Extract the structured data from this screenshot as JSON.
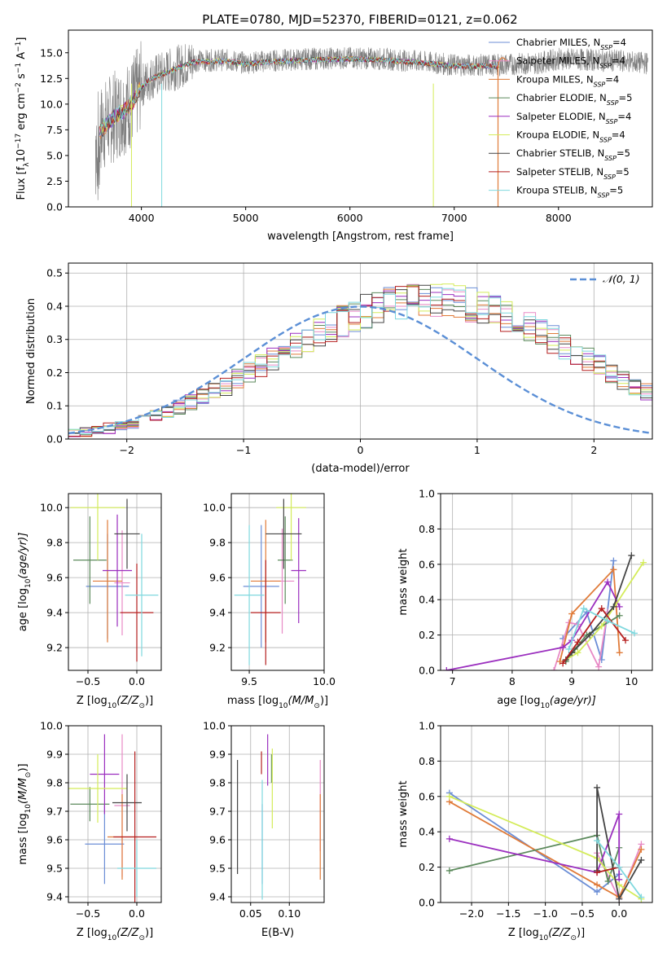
{
  "figure_title": "PLATE=0780, MJD=52370, FIBERID=0121, z=0.062",
  "colors": {
    "chabrier_miles": "#6b8ed6",
    "salpeter_miles": "#e88ac6",
    "kroupa_miles": "#e07b39",
    "chabrier_elodie": "#5c8a5c",
    "salpeter_elodie": "#9b2fbf",
    "kroupa_elodie": "#d4ec5a",
    "chabrier_stelib": "#444444",
    "salpeter_stelib": "#b51f1f",
    "kroupa_stelib": "#7fd8de",
    "data": "#7f7f7f",
    "normal_curve": "#5b8fd6",
    "grid": "#b0b0b0"
  },
  "legend": {
    "models": [
      {
        "label": "Chabrier MILES, N",
        "sub": "SSP",
        "tail": "=4",
        "key": "chabrier_miles"
      },
      {
        "label": "Salpeter MILES, N",
        "sub": "SSP",
        "tail": "=4",
        "key": "salpeter_miles"
      },
      {
        "label": "Kroupa MILES, N",
        "sub": "SSP",
        "tail": "=4",
        "key": "kroupa_miles"
      },
      {
        "label": "Chabrier ELODIE, N",
        "sub": "SSP",
        "tail": "=5",
        "key": "chabrier_elodie"
      },
      {
        "label": "Salpeter ELODIE, N",
        "sub": "SSP",
        "tail": "=4",
        "key": "salpeter_elodie"
      },
      {
        "label": "Kroupa ELODIE, N",
        "sub": "SSP",
        "tail": "=4",
        "key": "kroupa_elodie"
      },
      {
        "label": "Chabrier STELIB, N",
        "sub": "SSP",
        "tail": "=5",
        "key": "chabrier_stelib"
      },
      {
        "label": "Salpeter STELIB, N",
        "sub": "SSP",
        "tail": "=5",
        "key": "salpeter_stelib"
      },
      {
        "label": "Kroupa STELIB, N",
        "sub": "SSP",
        "tail": "=5",
        "key": "kroupa_stelib"
      }
    ],
    "normal": "𝒩(0, 1)"
  },
  "chart_data": [
    {
      "id": "spectrum",
      "type": "line",
      "xlabel": "wavelength [Angstrom, rest frame]",
      "ylabel": "Flux [f",
      "ylabel_parts": [
        "Flux [f",
        "λ",
        "10",
        "−17",
        " erg cm",
        "−2",
        " s",
        "−1",
        " A",
        "−1",
        "]"
      ],
      "xlim": [
        3300,
        8900
      ],
      "ylim": [
        0,
        17.2
      ],
      "xticks": [
        4000,
        5000,
        6000,
        7000,
        8000
      ],
      "xtick_labels": [
        "4000",
        "5000",
        "6000",
        "7000",
        "8000"
      ],
      "yticks": [
        0,
        2.5,
        5,
        7.5,
        10,
        12.5,
        15
      ],
      "ytick_labels": [
        "0.0",
        "2.5",
        "5.0",
        "7.5",
        "10.0",
        "12.5",
        "15.0"
      ],
      "continuum": [
        [
          3560,
          7.0
        ],
        [
          3700,
          8.5
        ],
        [
          3900,
          10.0
        ],
        [
          4000,
          11.8
        ],
        [
          4100,
          12.6
        ],
        [
          4300,
          13.4
        ],
        [
          4500,
          14.2
        ],
        [
          4800,
          14.3
        ],
        [
          5000,
          14.0
        ],
        [
          5200,
          14.2
        ],
        [
          5600,
          14.4
        ],
        [
          6000,
          14.5
        ],
        [
          6300,
          14.4
        ],
        [
          6600,
          14.2
        ],
        [
          7000,
          13.8
        ],
        [
          7400,
          13.8
        ],
        [
          7800,
          14.0
        ],
        [
          8000,
          14.4
        ],
        [
          8300,
          14.3
        ],
        [
          8600,
          14.2
        ],
        [
          8800,
          14.0
        ]
      ],
      "model_end": 7430,
      "data_end": 8860
    },
    {
      "id": "residuals",
      "type": "bar",
      "xlabel": "(data-model)/error",
      "ylabel": "Normed distribution",
      "xlim": [
        -2.5,
        2.5
      ],
      "ylim": [
        0,
        0.53
      ],
      "xticks": [
        -2,
        -1,
        0,
        1,
        2
      ],
      "xtick_labels": [
        "−2",
        "−1",
        "0",
        "1",
        "2"
      ],
      "yticks": [
        0,
        0.1,
        0.2,
        0.3,
        0.4,
        0.5
      ],
      "ytick_labels": [
        "0.0",
        "0.1",
        "0.2",
        "0.3",
        "0.4",
        "0.5"
      ],
      "bin_width": 0.1,
      "bins_start": -2.5,
      "envelope": [
        0.018,
        0.022,
        0.026,
        0.032,
        0.04,
        0.05,
        0.06,
        0.07,
        0.082,
        0.095,
        0.11,
        0.125,
        0.142,
        0.16,
        0.18,
        0.2,
        0.22,
        0.24,
        0.26,
        0.28,
        0.3,
        0.32,
        0.34,
        0.355,
        0.37,
        0.385,
        0.395,
        0.405,
        0.41,
        0.415,
        0.42,
        0.42,
        0.415,
        0.41,
        0.405,
        0.395,
        0.385,
        0.37,
        0.355,
        0.34,
        0.32,
        0.3,
        0.28,
        0.26,
        0.24,
        0.22,
        0.2,
        0.18,
        0.16,
        0.142
      ],
      "normal_label": "𝒩(0, 1)"
    },
    {
      "id": "age_vs_Z",
      "type": "scatter",
      "xlabel": "Z [log",
      "xlabel_parts": [
        "Z [log",
        "10",
        "(Z/Z",
        "⊙",
        ")]"
      ],
      "ylabel_parts": [
        "age  [log",
        "10",
        "(age/yr)]"
      ],
      "xlim": [
        -0.7,
        0.25
      ],
      "ylim": [
        9.07,
        10.08
      ],
      "xticks": [
        -0.5,
        0.0
      ],
      "xtick_labels": [
        "−0.5",
        "0.0"
      ],
      "yticks": [
        9.2,
        9.4,
        9.6,
        9.8,
        10.0
      ],
      "ytick_labels": [
        "9.2",
        "9.4",
        "9.6",
        "9.8",
        "10.0"
      ],
      "points": [
        {
          "key": "chabrier_miles",
          "x": -0.3,
          "xerr": 0.22,
          "y": 9.55,
          "yerr": 0.3
        },
        {
          "key": "salpeter_miles",
          "x": -0.15,
          "xerr": 0.08,
          "y": 9.57,
          "yerr": 0.3
        },
        {
          "key": "kroupa_miles",
          "x": -0.3,
          "xerr": 0.15,
          "y": 9.58,
          "yerr": 0.35
        },
        {
          "key": "chabrier_elodie",
          "x": -0.48,
          "xerr": 0.17,
          "y": 9.7,
          "yerr": 0.25
        },
        {
          "key": "salpeter_elodie",
          "x": -0.2,
          "xerr": 0.15,
          "y": 9.64,
          "yerr": 0.32
        },
        {
          "key": "kroupa_elodie",
          "x": -0.4,
          "xerr": 0.28,
          "y": 10.0,
          "yerr": 0.3
        },
        {
          "key": "chabrier_stelib",
          "x": -0.1,
          "xerr": 0.13,
          "y": 9.85,
          "yerr": 0.2
        },
        {
          "key": "salpeter_stelib",
          "x": 0.0,
          "xerr": 0.17,
          "y": 9.4,
          "yerr": 0.28
        },
        {
          "key": "kroupa_stelib",
          "x": 0.05,
          "xerr": 0.17,
          "y": 9.5,
          "yerr": 0.35
        }
      ]
    },
    {
      "id": "age_vs_mass",
      "type": "scatter",
      "xlabel_parts": [
        "mass [log",
        "10",
        "(M/M",
        "⊙",
        ")]"
      ],
      "xlim": [
        9.38,
        10.0
      ],
      "ylim": [
        9.07,
        10.08
      ],
      "xticks": [
        9.5,
        10.0
      ],
      "xtick_labels": [
        "9.5",
        "10.0"
      ],
      "yticks": [
        9.2,
        9.4,
        9.6,
        9.8,
        10.0
      ],
      "ytick_labels": [
        "9.2",
        "9.4",
        "9.6",
        "9.8",
        "10.0"
      ],
      "points": [
        {
          "key": "chabrier_miles",
          "x": 9.58,
          "xerr": 0.12,
          "y": 9.55,
          "yerr": 0.35
        },
        {
          "key": "salpeter_miles",
          "x": 9.72,
          "xerr": 0.08,
          "y": 9.58,
          "yerr": 0.3
        },
        {
          "key": "kroupa_miles",
          "x": 9.61,
          "xerr": 0.1,
          "y": 9.58,
          "yerr": 0.35
        },
        {
          "key": "chabrier_elodie",
          "x": 9.74,
          "xerr": 0.05,
          "y": 9.7,
          "yerr": 0.25
        },
        {
          "key": "salpeter_elodie",
          "x": 9.83,
          "xerr": 0.05,
          "y": 9.64,
          "yerr": 0.3
        },
        {
          "key": "kroupa_elodie",
          "x": 9.78,
          "xerr": 0.1,
          "y": 10.0,
          "yerr": 0.3
        },
        {
          "key": "chabrier_stelib",
          "x": 9.73,
          "xerr": 0.12,
          "y": 9.85,
          "yerr": 0.2
        },
        {
          "key": "salpeter_stelib",
          "x": 9.61,
          "xerr": 0.1,
          "y": 9.4,
          "yerr": 0.3
        },
        {
          "key": "kroupa_stelib",
          "x": 9.5,
          "xerr": 0.1,
          "y": 9.5,
          "yerr": 0.4
        }
      ]
    },
    {
      "id": "weight_vs_age",
      "type": "line",
      "xlabel_parts": [
        "age  [log",
        "10",
        "(age/yr)]"
      ],
      "ylabel": "mass weight",
      "xlim": [
        6.8,
        10.35
      ],
      "ylim": [
        0,
        1.0
      ],
      "xticks": [
        7,
        8,
        9,
        10
      ],
      "xtick_labels": [
        "7",
        "8",
        "9",
        "10"
      ],
      "yticks": [
        0,
        0.2,
        0.4,
        0.6,
        0.8,
        1.0
      ],
      "ytick_labels": [
        "0.0",
        "0.2",
        "0.4",
        "0.6",
        "0.8",
        "1.0"
      ],
      "series": [
        {
          "key": "chabrier_miles",
          "x": [
            8.85,
            9.25,
            9.5,
            9.7
          ],
          "y": [
            0.18,
            0.33,
            0.06,
            0.62
          ]
        },
        {
          "key": "salpeter_miles",
          "x": [
            8.7,
            8.95,
            9.1,
            9.45,
            9.6
          ],
          "y": [
            0.0,
            0.27,
            0.26,
            0.02,
            0.33
          ]
        },
        {
          "key": "kroupa_miles",
          "x": [
            8.8,
            9.0,
            9.7,
            9.8
          ],
          "y": [
            0.05,
            0.32,
            0.57,
            0.1
          ]
        },
        {
          "key": "chabrier_elodie",
          "x": [
            8.9,
            9.05,
            9.25,
            9.8
          ],
          "y": [
            0.05,
            0.12,
            0.2,
            0.31
          ]
        },
        {
          "key": "salpeter_elodie",
          "x": [
            6.9,
            8.85,
            9.0,
            9.6,
            9.8
          ],
          "y": [
            0.0,
            0.13,
            0.17,
            0.5,
            0.36
          ]
        },
        {
          "key": "kroupa_elodie",
          "x": [
            8.9,
            9.1,
            9.5,
            10.2
          ],
          "y": [
            0.06,
            0.1,
            0.25,
            0.61
          ]
        },
        {
          "key": "chabrier_stelib",
          "x": [
            8.9,
            9.0,
            9.3,
            9.7,
            10.0
          ],
          "y": [
            0.06,
            0.1,
            0.2,
            0.36,
            0.65
          ]
        },
        {
          "key": "salpeter_stelib",
          "x": [
            8.85,
            9.1,
            9.5,
            9.9
          ],
          "y": [
            0.04,
            0.16,
            0.35,
            0.17
          ]
        },
        {
          "key": "kroupa_stelib",
          "x": [
            8.95,
            9.2,
            9.6,
            10.05
          ],
          "y": [
            0.12,
            0.35,
            0.28,
            0.21
          ]
        }
      ]
    },
    {
      "id": "mass_vs_Z",
      "type": "scatter",
      "xlabel_parts": [
        "Z [log",
        "10",
        "(Z/Z",
        "⊙",
        ")]"
      ],
      "ylabel_parts": [
        "mass [log",
        "10",
        "(M/M",
        "⊙",
        ")]"
      ],
      "xlim": [
        -0.7,
        0.25
      ],
      "ylim": [
        9.38,
        10.0
      ],
      "xticks": [
        -0.5,
        0.0
      ],
      "xtick_labels": [
        "−0.5",
        "0.0"
      ],
      "yticks": [
        9.4,
        9.5,
        9.6,
        9.7,
        9.8,
        9.9,
        10.0
      ],
      "ytick_labels": [
        "9.4",
        "9.5",
        "9.6",
        "9.7",
        "9.8",
        "9.9",
        "10.0"
      ],
      "points": [
        {
          "key": "chabrier_miles",
          "x": -0.33,
          "xerr": 0.2,
          "y": 9.585,
          "yerr": 0.14
        },
        {
          "key": "salpeter_miles",
          "x": -0.15,
          "xerr": 0.08,
          "y": 9.72,
          "yerr": 0.25
        },
        {
          "key": "kroupa_miles",
          "x": -0.15,
          "xerr": 0.15,
          "y": 9.61,
          "yerr": 0.15
        },
        {
          "key": "chabrier_elodie",
          "x": -0.48,
          "xerr": 0.2,
          "y": 9.725,
          "yerr": 0.06
        },
        {
          "key": "salpeter_elodie",
          "x": -0.33,
          "xerr": 0.15,
          "y": 9.83,
          "yerr": 0.14
        },
        {
          "key": "kroupa_elodie",
          "x": -0.4,
          "xerr": 0.3,
          "y": 9.78,
          "yerr": 0.12
        },
        {
          "key": "chabrier_stelib",
          "x": -0.1,
          "xerr": 0.15,
          "y": 9.73,
          "yerr": 0.1
        },
        {
          "key": "salpeter_stelib",
          "x": -0.02,
          "xerr": 0.22,
          "y": 9.61,
          "yerr": 0.3
        },
        {
          "key": "kroupa_stelib",
          "x": 0.0,
          "xerr": 0.2,
          "y": 9.5,
          "yerr": 0.1
        }
      ]
    },
    {
      "id": "mass_vs_ebv",
      "type": "scatter",
      "xlabel": "E(B-V)",
      "xlim": [
        0.025,
        0.145
      ],
      "ylim": [
        9.38,
        10.0
      ],
      "xticks": [
        0.05,
        0.1
      ],
      "xtick_labels": [
        "0.05",
        "0.10"
      ],
      "yticks": [
        9.4,
        9.5,
        9.6,
        9.7,
        9.8,
        9.9,
        10.0
      ],
      "ytick_labels": [
        "9.4",
        "9.5",
        "9.6",
        "9.7",
        "9.8",
        "9.9",
        "10.0"
      ],
      "points": [
        {
          "key": "chabrier_miles",
          "x": 0.065,
          "xerr": 0,
          "y": 9.585,
          "yerr": 0.14
        },
        {
          "key": "salpeter_miles",
          "x": 0.14,
          "xerr": 0,
          "y": 9.72,
          "yerr": 0.16
        },
        {
          "key": "kroupa_miles",
          "x": 0.14,
          "xerr": 0,
          "y": 9.61,
          "yerr": 0.15
        },
        {
          "key": "chabrier_elodie",
          "x": 0.077,
          "xerr": 0,
          "y": 9.85,
          "yerr": 0.05
        },
        {
          "key": "salpeter_elodie",
          "x": 0.072,
          "xerr": 0,
          "y": 9.88,
          "yerr": 0.09
        },
        {
          "key": "kroupa_elodie",
          "x": 0.078,
          "xerr": 0,
          "y": 9.78,
          "yerr": 0.14
        },
        {
          "key": "chabrier_stelib",
          "x": 0.033,
          "xerr": 0,
          "y": 9.68,
          "yerr": 0.2
        },
        {
          "key": "salpeter_stelib",
          "x": 0.064,
          "xerr": 0,
          "y": 9.87,
          "yerr": 0.04
        },
        {
          "key": "kroupa_stelib",
          "x": 0.065,
          "xerr": 0,
          "y": 9.6,
          "yerr": 0.21
        }
      ]
    },
    {
      "id": "weight_vs_Z",
      "type": "line",
      "xlabel_parts": [
        "Z [log",
        "10",
        "(Z/Z",
        "⊙",
        ")]"
      ],
      "ylabel": "mass weight",
      "xlim": [
        -2.42,
        0.45
      ],
      "ylim": [
        0,
        1.0
      ],
      "xticks": [
        -2.0,
        -1.5,
        -1.0,
        -0.5,
        0.0
      ],
      "xtick_labels": [
        "−2.0",
        "−1.5",
        "−1.0",
        "−0.5",
        "0.0"
      ],
      "yticks": [
        0,
        0.2,
        0.4,
        0.6,
        0.8,
        1.0
      ],
      "ytick_labels": [
        "0.0",
        "0.2",
        "0.4",
        "0.6",
        "0.8",
        "1.0"
      ],
      "series": [
        {
          "key": "chabrier_miles",
          "x": [
            -2.3,
            -0.3,
            0.0
          ],
          "y": [
            0.62,
            0.06,
            0.16
          ]
        },
        {
          "key": "salpeter_miles",
          "x": [
            -0.3,
            0.0,
            0.3
          ],
          "y": [
            0.28,
            0.02,
            0.33
          ]
        },
        {
          "key": "kroupa_miles",
          "x": [
            -2.3,
            -0.3,
            0.0,
            0.3
          ],
          "y": [
            0.57,
            0.1,
            0.03,
            0.3
          ]
        },
        {
          "key": "chabrier_elodie",
          "x": [
            -2.3,
            -0.3,
            -0.15,
            0.0
          ],
          "y": [
            0.18,
            0.38,
            0.12,
            0.31
          ]
        },
        {
          "key": "salpeter_elodie",
          "x": [
            -2.3,
            -0.3,
            0.0,
            0.0
          ],
          "y": [
            0.36,
            0.17,
            0.5,
            0.13
          ]
        },
        {
          "key": "kroupa_elodie",
          "x": [
            -2.3,
            -0.3,
            0.0,
            0.3
          ],
          "y": [
            0.6,
            0.25,
            0.1,
            0.02
          ]
        },
        {
          "key": "chabrier_stelib",
          "x": [
            -0.3,
            -0.3,
            0.0,
            0.3
          ],
          "y": [
            0.18,
            0.65,
            0.02,
            0.24
          ]
        },
        {
          "key": "salpeter_stelib",
          "x": [
            -0.3,
            0.0
          ],
          "y": [
            0.17,
            0.2
          ]
        },
        {
          "key": "kroupa_stelib",
          "x": [
            -0.3,
            0.0,
            0.3
          ],
          "y": [
            0.35,
            0.2,
            0.03
          ]
        }
      ]
    }
  ]
}
